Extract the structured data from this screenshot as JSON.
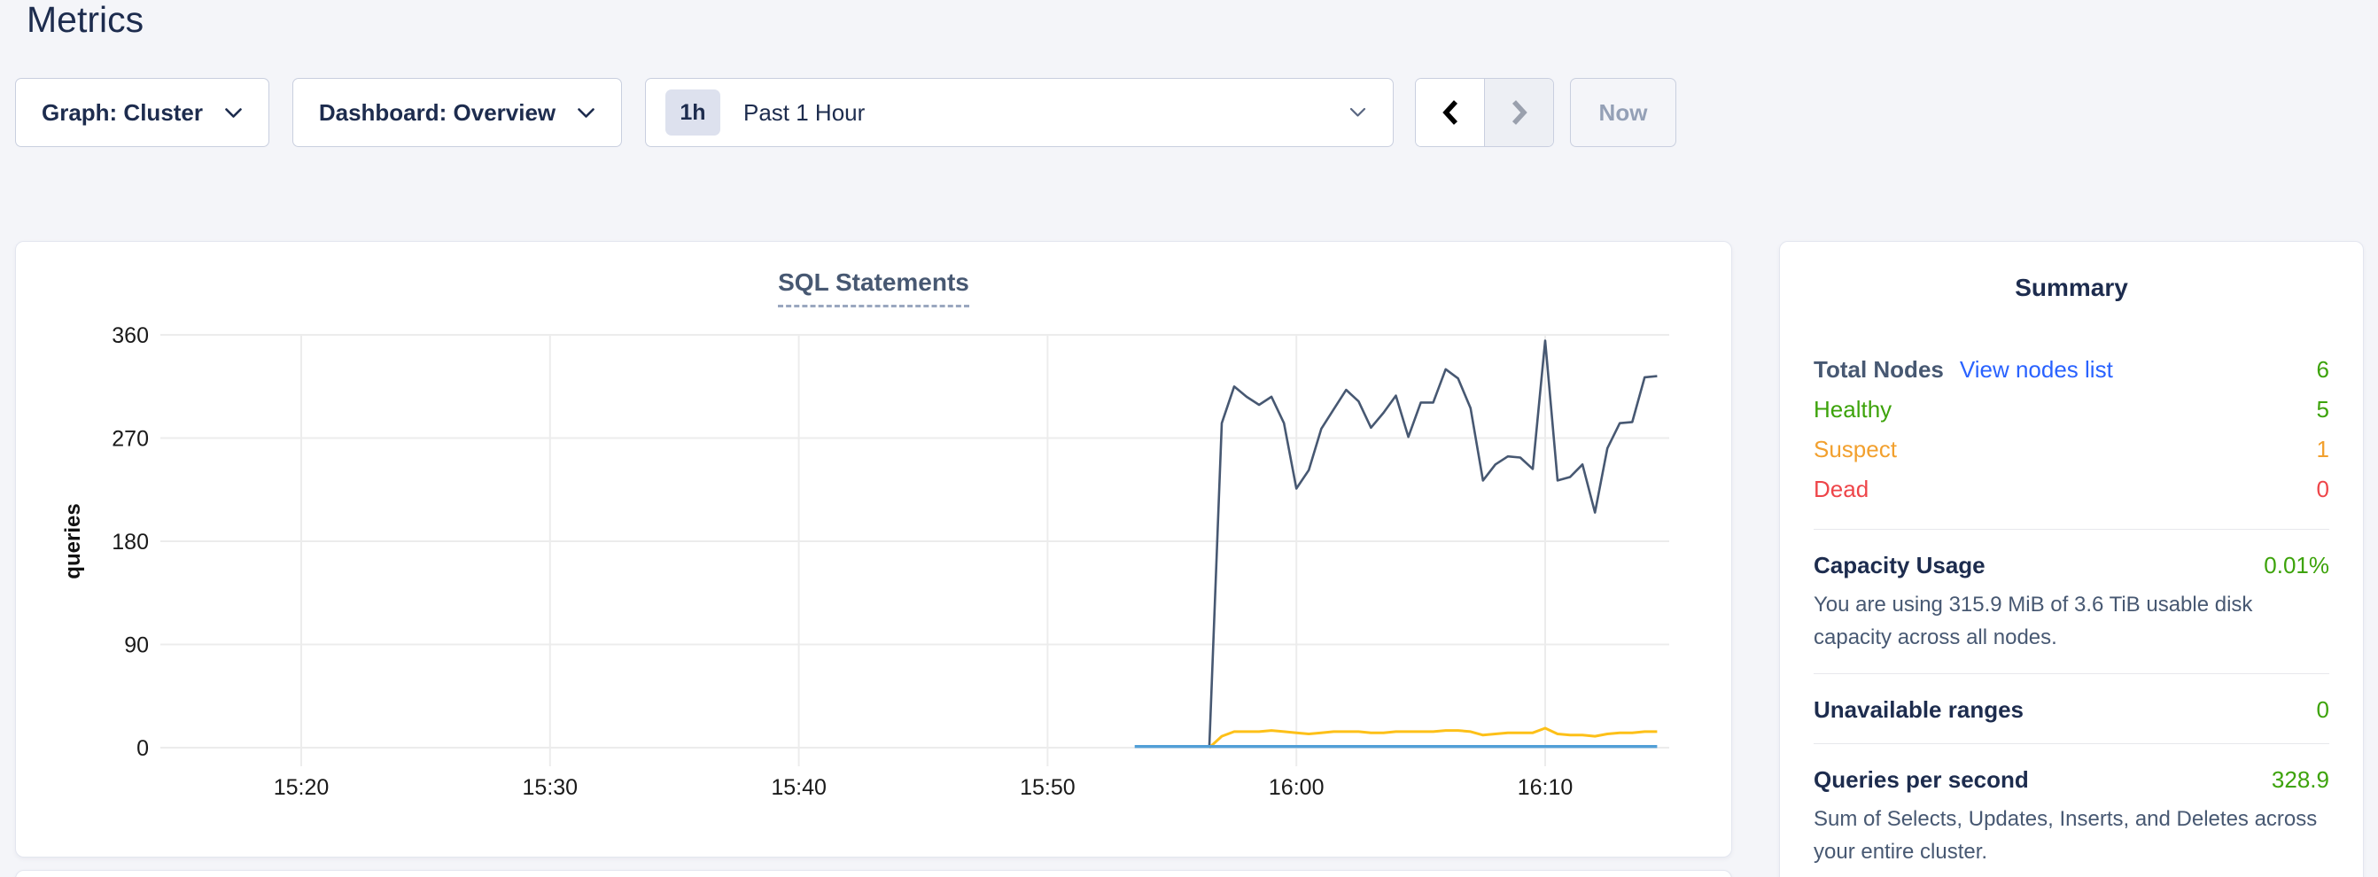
{
  "page": {
    "title": "Metrics"
  },
  "toolbar": {
    "graph_dropdown_label": "Graph: Cluster",
    "dashboard_dropdown_label": "Dashboard: Overview",
    "time_window_badge": "1h",
    "time_window_label": "Past 1 Hour",
    "now_button_label": "Now"
  },
  "chart_data": {
    "type": "line",
    "title": "SQL Statements",
    "xlabel": "",
    "ylabel": "queries",
    "ylim": [
      0,
      360
    ],
    "yticks": [
      0,
      90,
      180,
      270,
      360
    ],
    "xticks": [
      "15:20",
      "15:30",
      "15:40",
      "15:50",
      "16:00",
      "16:10"
    ],
    "x_visible_range": [
      "15:16",
      "16:15"
    ],
    "grid": true,
    "legend": "hidden",
    "series": [
      {
        "name": "dark-slate-line",
        "color": "#475872",
        "start": "15:56:30",
        "step_seconds": 30,
        "values": [
          0,
          283,
          315,
          306,
          299,
          306,
          283,
          226,
          242,
          278,
          295,
          312,
          302,
          279,
          292,
          307,
          271,
          301,
          301,
          330,
          322,
          296,
          233,
          247,
          254,
          253,
          243,
          355,
          233,
          236,
          247,
          205,
          261,
          283,
          284,
          323,
          324
        ]
      },
      {
        "name": "yellow-line",
        "color": "#fdc018",
        "start": "15:56:30",
        "step_seconds": 30,
        "values": [
          0,
          10,
          14,
          14,
          14,
          15,
          14,
          13,
          12,
          13,
          14,
          14,
          14,
          13,
          13,
          14,
          14,
          14,
          14,
          15,
          15,
          14,
          11,
          12,
          13,
          13,
          13,
          17,
          12,
          11,
          11,
          10,
          12,
          13,
          13,
          14,
          14
        ]
      },
      {
        "name": "blue-line",
        "color": "#519fd7",
        "start": "15:53:30",
        "step_seconds": 1260,
        "values": [
          1,
          1
        ]
      }
    ]
  },
  "summary": {
    "title": "Summary",
    "node_rows": [
      {
        "label": "Total Nodes",
        "link": "View nodes list",
        "value": "6",
        "label_color": "#475872",
        "value_color": "#3da30b",
        "bold": true
      },
      {
        "label": "Healthy",
        "value": "5",
        "label_color": "#3da30b",
        "value_color": "#3da30b",
        "bold": false
      },
      {
        "label": "Suspect",
        "value": "1",
        "label_color": "#f2a02e",
        "value_color": "#f2a02e",
        "bold": false
      },
      {
        "label": "Dead",
        "value": "0",
        "label_color": "#ee4549",
        "value_color": "#ee4549",
        "bold": false
      }
    ],
    "sections": [
      {
        "label": "Capacity Usage",
        "value": "0.01%",
        "value_color": "#3da30b",
        "description": "You are using 315.9 MiB of 3.6 TiB usable disk capacity across all nodes."
      },
      {
        "label": "Unavailable ranges",
        "value": "0",
        "value_color": "#3da30b",
        "description": ""
      },
      {
        "label": "Queries per second",
        "value": "328.9",
        "value_color": "#3da30b",
        "description": "Sum of Selects, Updates, Inserts, and Deletes across your entire cluster."
      }
    ]
  },
  "colors": {
    "page_background": "#f4f5f9",
    "heading": "#1d2c4e",
    "body_text": "#475872",
    "link_blue": "#2962ff",
    "healthy_green": "#3da30b",
    "suspect_orange": "#f2a02e",
    "dead_red": "#ee4549",
    "grid_line": "#ececec"
  }
}
